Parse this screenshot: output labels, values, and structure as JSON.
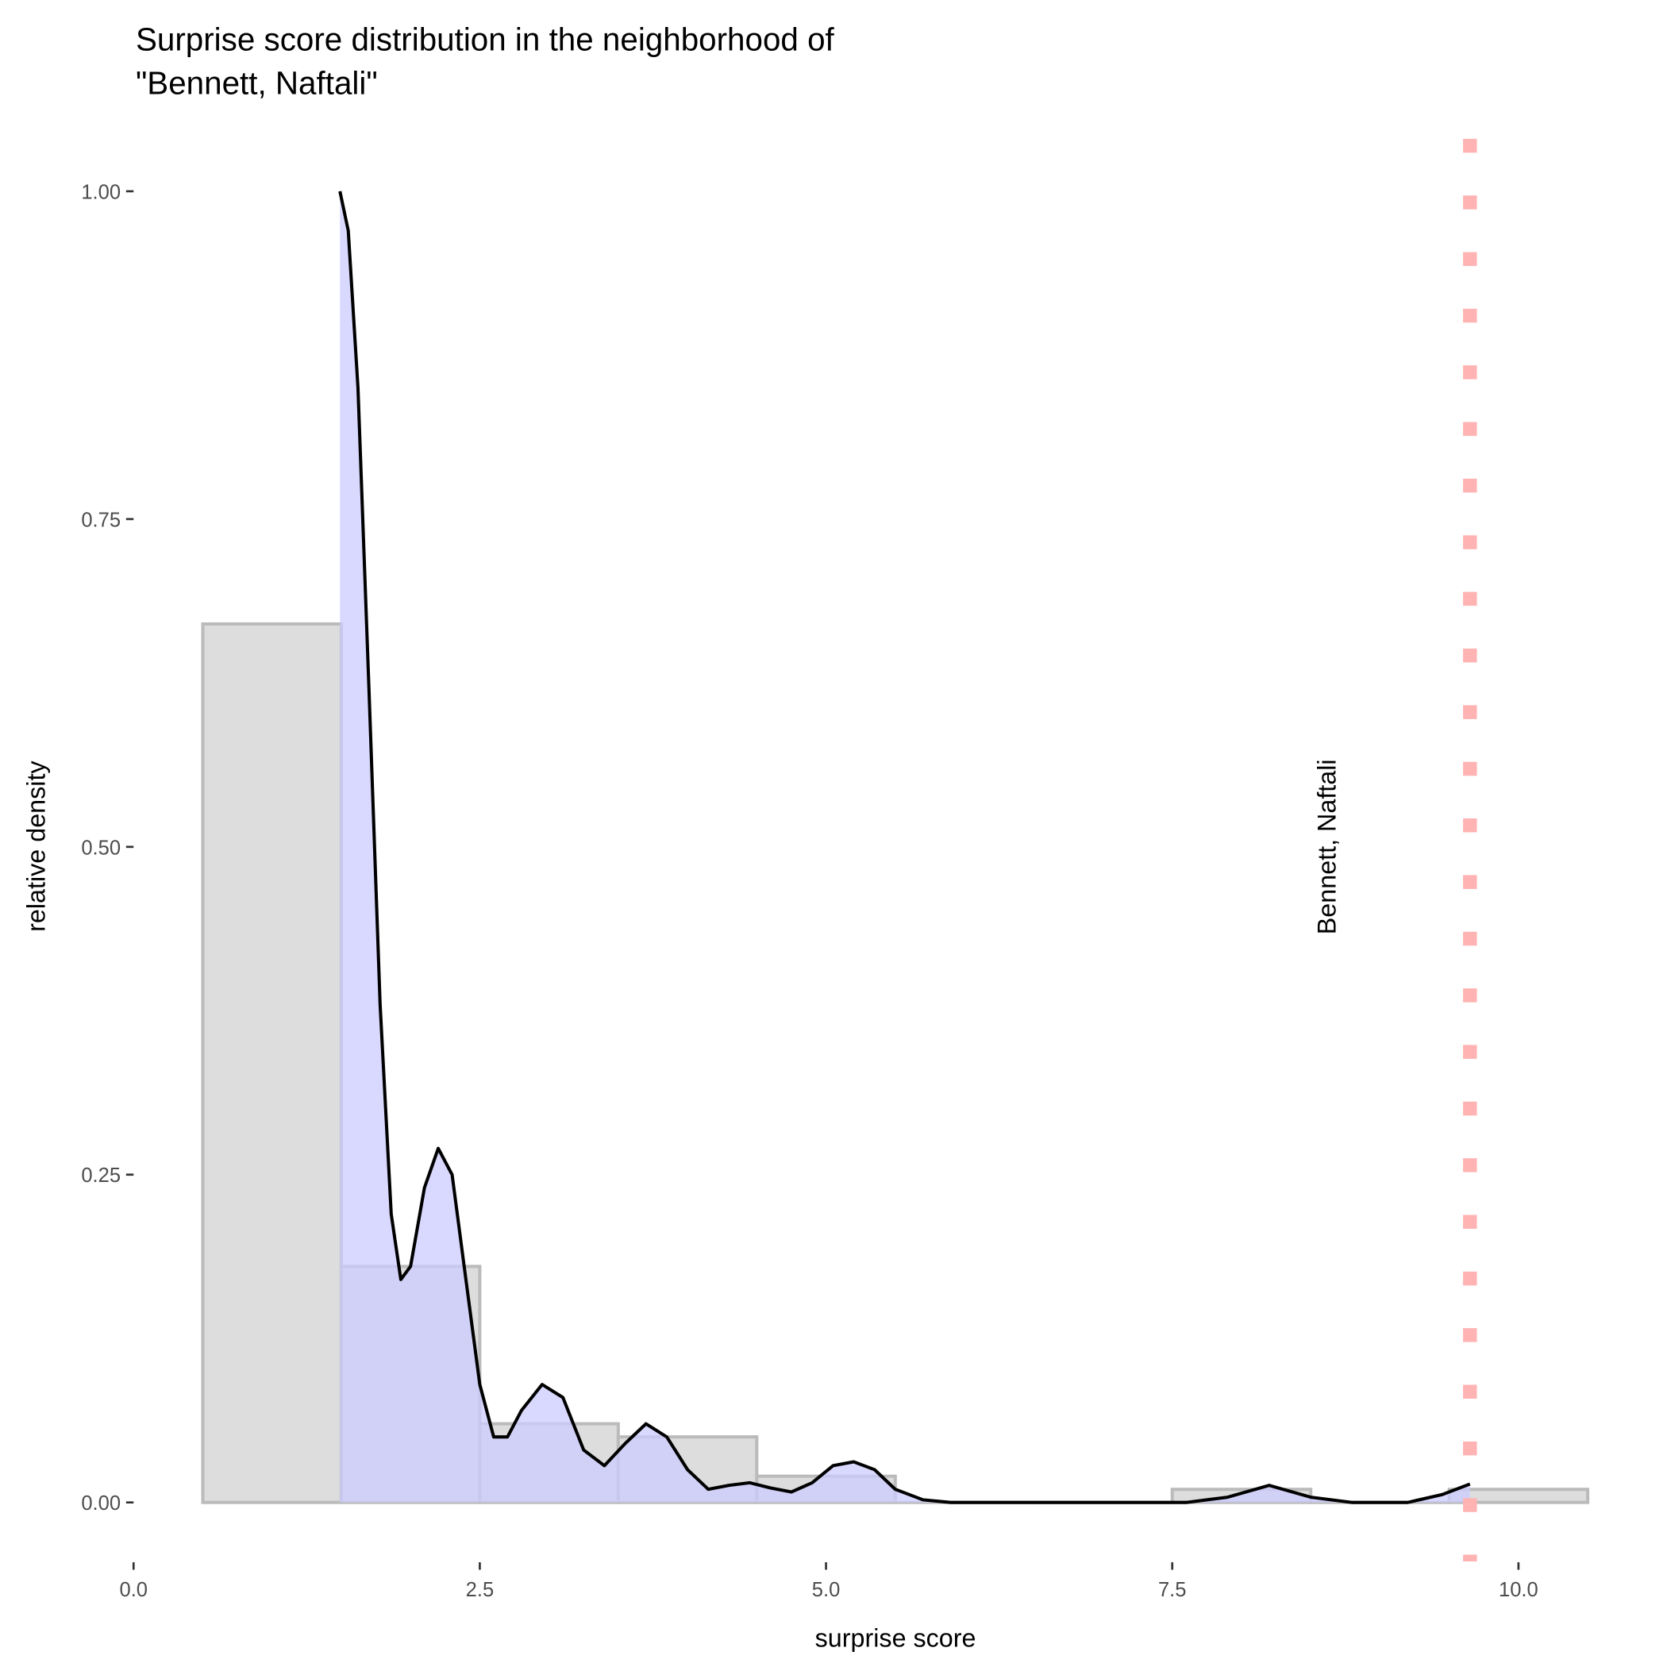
{
  "chart_data": {
    "type": "bar+density",
    "title_line1": "Surprise score distribution in the neighborhood of",
    "title_line2": "\"Bennett, Naftali\"",
    "xlabel": "surprise score",
    "ylabel": "relative density",
    "xlim": [
      0,
      10.5
    ],
    "ylim": [
      -0.045,
      1.04
    ],
    "x_ticks": [
      {
        "v": 0,
        "label": "0.0"
      },
      {
        "v": 2.5,
        "label": "2.5"
      },
      {
        "v": 5,
        "label": "5.0"
      },
      {
        "v": 7.5,
        "label": "7.5"
      },
      {
        "v": 10,
        "label": "10.0"
      }
    ],
    "y_ticks": [
      {
        "v": 0,
        "label": "0.00"
      },
      {
        "v": 0.25,
        "label": "0.25"
      },
      {
        "v": 0.5,
        "label": "0.50"
      },
      {
        "v": 0.75,
        "label": "0.75"
      },
      {
        "v": 1,
        "label": "1.00"
      }
    ],
    "histogram": {
      "bin_width": 1,
      "bins": [
        {
          "center": 1,
          "value": 0.67
        },
        {
          "center": 2,
          "value": 0.18
        },
        {
          "center": 3,
          "value": 0.06
        },
        {
          "center": 4,
          "value": 0.05
        },
        {
          "center": 5,
          "value": 0.02
        },
        {
          "center": 6,
          "value": 0
        },
        {
          "center": 7,
          "value": 0
        },
        {
          "center": 8,
          "value": 0.01
        },
        {
          "center": 9,
          "value": 0
        },
        {
          "center": 10,
          "value": 0.01
        }
      ]
    },
    "density": [
      [
        1.49,
        1.0
      ],
      [
        1.55,
        0.97
      ],
      [
        1.62,
        0.85
      ],
      [
        1.7,
        0.62
      ],
      [
        1.78,
        0.38
      ],
      [
        1.86,
        0.22
      ],
      [
        1.93,
        0.17
      ],
      [
        2.0,
        0.18
      ],
      [
        2.1,
        0.24
      ],
      [
        2.2,
        0.27
      ],
      [
        2.3,
        0.25
      ],
      [
        2.4,
        0.17
      ],
      [
        2.5,
        0.09
      ],
      [
        2.6,
        0.05
      ],
      [
        2.7,
        0.05
      ],
      [
        2.8,
        0.07
      ],
      [
        2.95,
        0.09
      ],
      [
        3.1,
        0.08
      ],
      [
        3.25,
        0.04
      ],
      [
        3.4,
        0.028
      ],
      [
        3.55,
        0.045
      ],
      [
        3.7,
        0.06
      ],
      [
        3.85,
        0.05
      ],
      [
        4.0,
        0.025
      ],
      [
        4.15,
        0.01
      ],
      [
        4.3,
        0.013
      ],
      [
        4.45,
        0.015
      ],
      [
        4.6,
        0.011
      ],
      [
        4.75,
        0.008
      ],
      [
        4.9,
        0.015
      ],
      [
        5.05,
        0.028
      ],
      [
        5.2,
        0.031
      ],
      [
        5.35,
        0.025
      ],
      [
        5.5,
        0.01
      ],
      [
        5.7,
        0.002
      ],
      [
        5.9,
        0
      ],
      [
        7.6,
        0
      ],
      [
        7.9,
        0.004
      ],
      [
        8.2,
        0.013
      ],
      [
        8.5,
        0.004
      ],
      [
        8.8,
        0
      ],
      [
        9.2,
        0
      ],
      [
        9.45,
        0.006
      ],
      [
        9.65,
        0.014
      ]
    ],
    "marker": {
      "x": 9.65,
      "label": "Bennett, Naftali",
      "label_x": 8.68,
      "label_y": 0.5,
      "color": "#ffb3b3"
    },
    "colors": {
      "hist_fill": "#dddddd",
      "hist_stroke": "#bbbbbb",
      "density_fill": "#ccccff",
      "density_line": "#000000"
    }
  }
}
